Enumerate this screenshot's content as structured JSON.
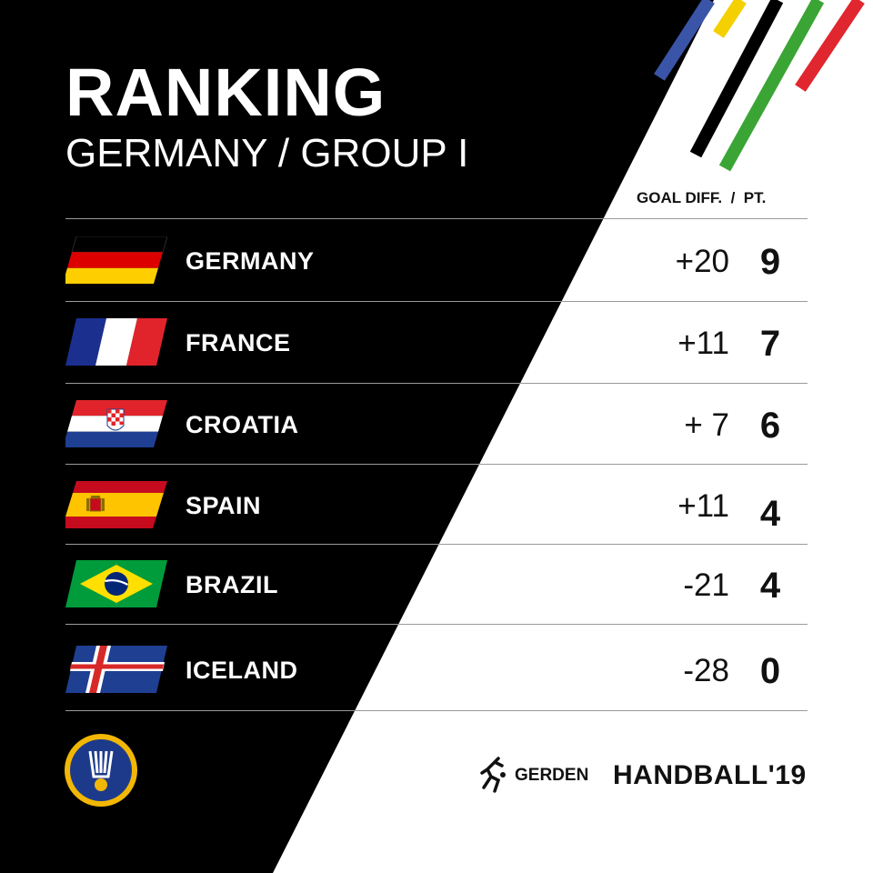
{
  "header": {
    "title": "RANKING",
    "subtitle": "GERMANY / GROUP I",
    "column_header": "GOAL DIFF.  /  PT."
  },
  "standings": [
    {
      "country": "GERMANY",
      "goal_diff": "+20",
      "points": "9",
      "flag": "germany-flag"
    },
    {
      "country": "FRANCE",
      "goal_diff": "+11",
      "points": "7",
      "flag": "france-flag"
    },
    {
      "country": "CROATIA",
      "goal_diff": "+ 7",
      "points": "6",
      "flag": "croatia-flag"
    },
    {
      "country": "SPAIN",
      "goal_diff": "+11",
      "points": "4",
      "flag": "spain-flag"
    },
    {
      "country": "BRAZIL",
      "goal_diff": "-21",
      "points": "4",
      "flag": "brazil-flag"
    },
    {
      "country": "ICELAND",
      "goal_diff": "-28",
      "points": "0",
      "flag": "iceland-flag"
    }
  ],
  "footer": {
    "brand_small": "GERDEN",
    "brand_big": "HANDBALL'19",
    "federation_logo": "ihf-logo-icon"
  },
  "colors": {
    "background_dark": "#000000",
    "background_light": "#ffffff",
    "stripe_blue": "#3a55a8",
    "stripe_yellow": "#f4d000",
    "stripe_black": "#000000",
    "stripe_green": "#3aa535",
    "stripe_red": "#e0262f"
  }
}
